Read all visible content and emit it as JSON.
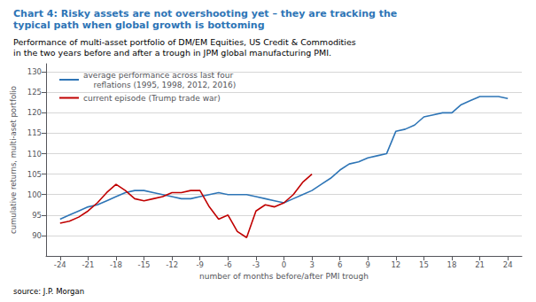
{
  "chart_data": {
    "type": "line",
    "title": "Chart 4: Risky assets are not overshooting yet – they are tracking the\ntypical path when global growth is bottoming",
    "title_color": "#2E75B6",
    "subtitle": "Performance of multi-asset portfolio of DM/EM Equities, US Credit & Commodities\nin the two years before and after a trough in JPM global manufacturing PMI.",
    "source": "source: J.P. Morgan",
    "xlabel": "number of months before/after PMI trough",
    "ylabel": "cumulative returns, multi-aset portfolio",
    "xlim": [
      -25.5,
      25.5
    ],
    "ylim": [
      85,
      132
    ],
    "xticks": [
      -24,
      -21,
      -18,
      -15,
      -12,
      -9,
      -6,
      -3,
      0,
      3,
      6,
      9,
      12,
      15,
      18,
      21,
      24
    ],
    "yticks": [
      90,
      95,
      100,
      105,
      110,
      115,
      120,
      125,
      130
    ],
    "grid": true,
    "legend": "upper left",
    "series": [
      {
        "name": "average performance across last four\n    reflations (1995, 1998, 2012, 2016)",
        "color": "#2E75B6",
        "x": [
          -24,
          -23,
          -22,
          -21,
          -20,
          -19,
          -18,
          -17,
          -16,
          -15,
          -14,
          -13,
          -12,
          -11,
          -10,
          -9,
          -8,
          -7,
          -6,
          -5,
          -4,
          -3,
          -2,
          -1,
          0,
          1,
          2,
          3,
          4,
          5,
          6,
          7,
          8,
          9,
          10,
          11,
          12,
          13,
          14,
          15,
          16,
          17,
          18,
          19,
          20,
          21,
          22,
          23,
          24
        ],
        "values": [
          94,
          95,
          96,
          97,
          97.5,
          98.5,
          99.5,
          100.5,
          101,
          101,
          100.5,
          100,
          99.5,
          99,
          99,
          99.5,
          100,
          100.5,
          100,
          100,
          100,
          99.5,
          99,
          98.5,
          98,
          99,
          100,
          101,
          102.5,
          104,
          106,
          107.5,
          108,
          109,
          109.5,
          110,
          115.5,
          116,
          117,
          119,
          119.5,
          120,
          120,
          122,
          123,
          124,
          124,
          124,
          123.5
        ]
      },
      {
        "name": "current episode (Trump trade war)",
        "color": "#C00000",
        "x": [
          -24,
          -23,
          -22,
          -21,
          -20,
          -19,
          -18,
          -17,
          -16,
          -15,
          -14,
          -13,
          -12,
          -11,
          -10,
          -9,
          -8,
          -7,
          -6,
          -5,
          -4,
          -3,
          -2,
          -1,
          0,
          1,
          2,
          3
        ],
        "values": [
          93,
          93.5,
          94.5,
          96,
          98,
          100.5,
          102.5,
          101,
          99,
          98.5,
          99,
          99.5,
          100.5,
          100.5,
          101,
          101,
          97,
          94,
          95,
          91,
          89.5,
          96,
          97.5,
          97,
          98,
          100,
          103,
          105
        ]
      }
    ]
  }
}
